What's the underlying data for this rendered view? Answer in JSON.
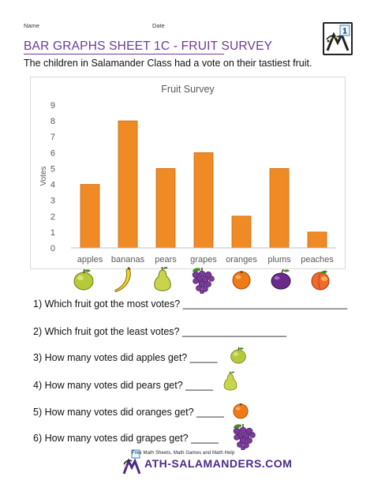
{
  "header": {
    "name_label": "Name",
    "date_label": "Date",
    "title": "BAR GRAPHS SHEET 1C - FRUIT SURVEY",
    "subtitle": "The children in Salamander Class had a vote on their tastiest fruit."
  },
  "logo": {
    "badge": "1",
    "icon": "math-salamanders-logo-icon"
  },
  "chart_data": {
    "type": "bar",
    "title": "Fruit Survey",
    "xlabel": "",
    "ylabel": "Votes",
    "categories": [
      "apples",
      "bananas",
      "pears",
      "grapes",
      "oranges",
      "plums",
      "peaches"
    ],
    "values": [
      4,
      8,
      5,
      6,
      2,
      5,
      1
    ],
    "ylim": [
      0,
      9
    ],
    "yticks": [
      "0",
      "1",
      "2",
      "3",
      "4",
      "5",
      "6",
      "7",
      "8",
      "9"
    ],
    "grid": false,
    "legend": "none",
    "bar_color": "#f08a24",
    "bar_edge_color": "#c96a10"
  },
  "fruit_icons": [
    "apple-icon",
    "banana-icon",
    "pear-icon",
    "grapes-icon",
    "orange-icon",
    "plum-icon",
    "peach-icon"
  ],
  "questions": [
    {
      "text": "1) Which fruit got the most votes? ______________________________",
      "icon": null
    },
    {
      "text": "2) Which fruit got the least votes? ___________________",
      "icon": null
    },
    {
      "text": "3) How many votes did apples get? _____",
      "icon": "apple-icon"
    },
    {
      "text": "4) How many votes did pears get? _____",
      "icon": "pear-icon"
    },
    {
      "text": "5) How many votes did oranges get? _____",
      "icon": "orange-icon"
    },
    {
      "text": "6) How many votes did grapes get? _____",
      "icon": "grapes-icon"
    }
  ],
  "footer": {
    "tagline": "Free Math Sheets, Math Games and Math Help",
    "site": "ATH-SALAMANDERS.COM"
  },
  "colors": {
    "title_purple": "#6a3a9a",
    "bar_orange": "#f08a24",
    "chart_text": "#595959"
  }
}
